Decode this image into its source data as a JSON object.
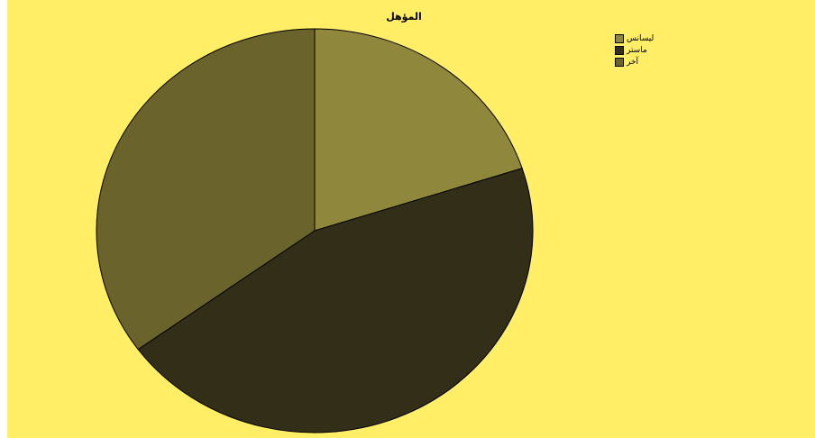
{
  "chart_data": {
    "type": "pie",
    "title": "المؤهل",
    "categories": [
      "ليسانس",
      "ماستر",
      "آخر"
    ],
    "values": [
      20,
      45,
      35
    ],
    "colors": [
      "#8f873b",
      "#332e17",
      "#6b632c"
    ],
    "legend_position": "top-right",
    "start_angle_deg": -90,
    "direction": "clockwise",
    "background": "#ffee66"
  }
}
